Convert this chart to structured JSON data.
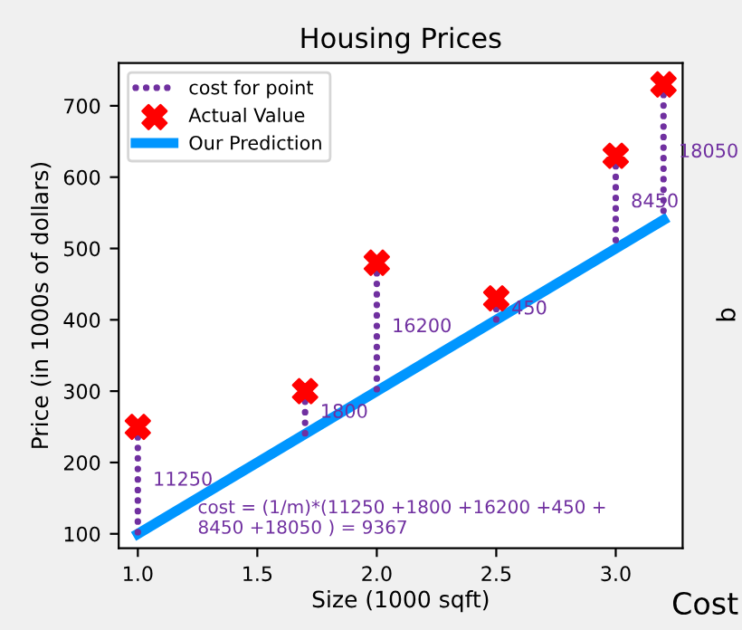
{
  "chart_data": {
    "type": "scatter",
    "title": "Housing Prices",
    "xlabel": "Size (1000 sqft)",
    "ylabel": "Price (in 1000s of dollars)",
    "xlim": [
      0.92,
      3.28
    ],
    "ylim": [
      80,
      760
    ],
    "xticks": [
      {
        "value": 1.0,
        "label": "1.0"
      },
      {
        "value": 1.5,
        "label": "1.5"
      },
      {
        "value": 2.0,
        "label": "2.0"
      },
      {
        "value": 2.5,
        "label": "2.5"
      },
      {
        "value": 3.0,
        "label": "3.0"
      }
    ],
    "yticks": [
      100,
      200,
      300,
      400,
      500,
      600,
      700
    ],
    "grid": false,
    "legend": "top left",
    "series": [
      {
        "name": "cost for point",
        "type": "line",
        "line_style": "dotted",
        "color": "#7030a0",
        "x": [
          1.0,
          1.0
        ],
        "values": [
          250,
          100
        ]
      },
      {
        "type": "line",
        "line_style": "dotted",
        "color": "#7030a0",
        "x": [
          1.7,
          1.7
        ],
        "values": [
          300,
          240
        ]
      },
      {
        "type": "line",
        "line_style": "dotted",
        "color": "#7030a0",
        "x": [
          2.0,
          2.0
        ],
        "values": [
          480,
          300
        ]
      },
      {
        "type": "line",
        "line_style": "dotted",
        "color": "#7030a0",
        "x": [
          2.5,
          2.5
        ],
        "values": [
          430,
          400
        ]
      },
      {
        "type": "line",
        "line_style": "dotted",
        "color": "#7030a0",
        "x": [
          3.0,
          3.0
        ],
        "values": [
          630,
          500
        ]
      },
      {
        "type": "line",
        "line_style": "dotted",
        "color": "#7030a0",
        "x": [
          3.2,
          3.2
        ],
        "values": [
          730,
          540
        ]
      },
      {
        "name": "Actual Value",
        "marker": "cross",
        "color": "#ff0000",
        "x": [
          1.0,
          1.7,
          2.0,
          2.5,
          3.0,
          3.2
        ],
        "values": [
          250,
          300,
          480,
          430,
          630,
          730
        ]
      },
      {
        "name": "Our Prediction",
        "type": "line",
        "line_style": "solid",
        "color": "#0096ff",
        "x": [
          1.0,
          3.2
        ],
        "values": [
          100,
          540
        ]
      }
    ],
    "annotations": [
      {
        "text": "11250",
        "x": 1.0,
        "y": 175
      },
      {
        "text": "1800",
        "x": 1.7,
        "y": 270
      },
      {
        "text": "16200",
        "x": 2.0,
        "y": 390
      },
      {
        "text": "450",
        "x": 2.5,
        "y": 415
      },
      {
        "text": "8450",
        "x": 3.0,
        "y": 565
      },
      {
        "text": "18050",
        "x": 3.2,
        "y": 635
      },
      "cost = (1/m)*(11250 +1800 +16200 +450 +\n8450 +18050 ) = 9367",
      "b",
      "Cost"
    ]
  }
}
